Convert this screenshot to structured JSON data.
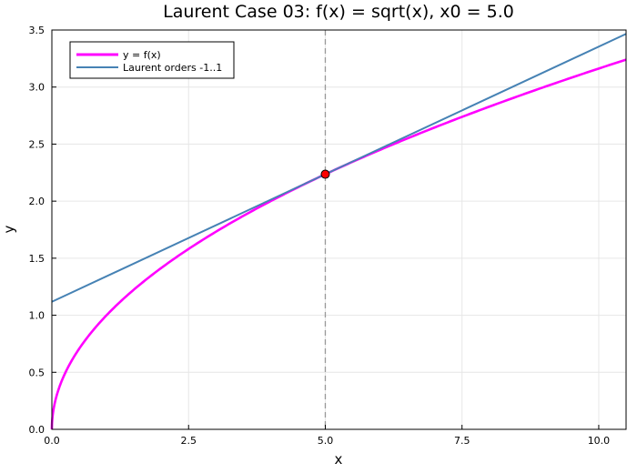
{
  "chart_data": {
    "type": "line",
    "title": "Laurent Case 03: f(x) = sqrt(x), x0 = 5.0",
    "xlabel": "x",
    "ylabel": "y",
    "xlim": [
      0,
      10.5
    ],
    "ylim": [
      0,
      3.5
    ],
    "xticks": [
      0,
      2.5,
      5,
      7.5,
      10
    ],
    "xtick_labels": [
      "0.0",
      "2.5",
      "5.0",
      "7.5",
      "10.0"
    ],
    "yticks": [
      0,
      0.5,
      1,
      1.5,
      2,
      2.5,
      3,
      3.5
    ],
    "ytick_labels": [
      "0.0",
      "0.5",
      "1.0",
      "1.5",
      "2.0",
      "2.5",
      "3.0",
      "3.5"
    ],
    "grid": true,
    "legend_position": "top-left",
    "series": [
      {
        "name": "y = f(x)",
        "color": "#ff00ff",
        "x": [
          0,
          0.05,
          0.1,
          0.2,
          0.35,
          0.5,
          0.75,
          1,
          1.5,
          2,
          2.5,
          3,
          3.5,
          4,
          4.5,
          5,
          5.5,
          6,
          6.5,
          7,
          7.5,
          8,
          8.5,
          9,
          9.5,
          10,
          10.5
        ],
        "y": [
          0,
          0.224,
          0.316,
          0.447,
          0.592,
          0.707,
          0.866,
          1.0,
          1.225,
          1.414,
          1.581,
          1.732,
          1.871,
          2.0,
          2.121,
          2.236,
          2.345,
          2.449,
          2.55,
          2.646,
          2.739,
          2.828,
          2.915,
          3.0,
          3.082,
          3.162,
          3.24
        ]
      },
      {
        "name": "Laurent orders -1..1",
        "color": "#4682b4",
        "x": [
          0,
          10.5
        ],
        "y": [
          1.118,
          3.466
        ]
      }
    ],
    "vline": {
      "x": 5.0,
      "color": "#999999",
      "style": "dashed"
    },
    "marker": {
      "x": 5.0,
      "y": 2.236,
      "color": "#ff0000"
    }
  }
}
